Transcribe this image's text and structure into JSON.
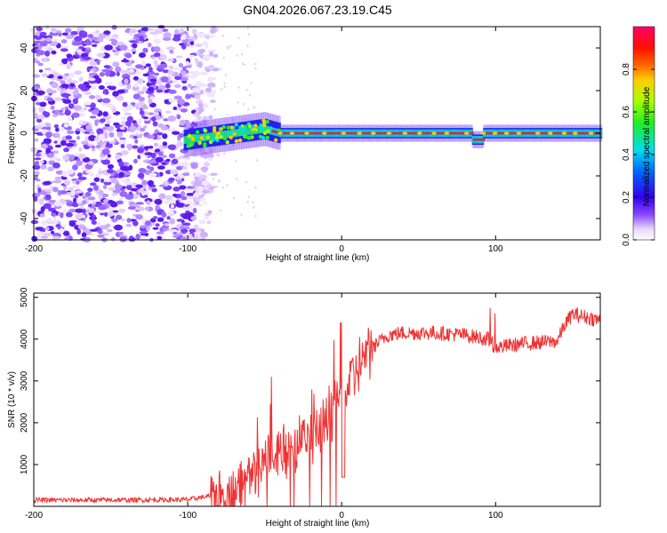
{
  "title": "GN04.2026.067.23.19.C45",
  "chart_data": [
    {
      "type": "heatmap",
      "xlabel": "Height of straight line (km)",
      "ylabel": "Frequency (Hz)",
      "xlim": [
        -200,
        168
      ],
      "ylim": [
        -50,
        50
      ],
      "xticks": [
        -200,
        -100,
        0,
        100
      ],
      "yticks": [
        -40,
        -20,
        0,
        20,
        40
      ],
      "colorbar": {
        "label": "Normalized spectral amplitude",
        "ticks": [
          "0.0",
          "0.2",
          "0.4",
          "0.6",
          "0.8"
        ],
        "range": [
          0,
          1
        ]
      },
      "description_points": [
        {
          "x": -200,
          "noise": "dense broadband low-amplitude noise"
        },
        {
          "x": -85,
          "noise": "broadband noise ends"
        },
        {
          "x": -100,
          "signal_start_freq": 0
        },
        {
          "x": -45,
          "freq": 2
        },
        {
          "x": 0,
          "freq": 0
        },
        {
          "x": 88,
          "freq": -3
        },
        {
          "x": 168,
          "freq": 1
        }
      ]
    },
    {
      "type": "line",
      "xlabel": "Height of straight line (km)",
      "ylabel": "SNR (10 * v/v)",
      "xlim": [
        -200,
        168
      ],
      "ylim": [
        0,
        5100
      ],
      "xticks": [
        -200,
        -100,
        0,
        100
      ],
      "yticks": [
        1000,
        2000,
        3000,
        4000,
        5000
      ],
      "series": [
        {
          "color": "#ee3333",
          "x": [
            -200,
            -150,
            -100,
            -85,
            -70,
            -60,
            -50,
            -40,
            -30,
            -20,
            -10,
            0,
            10,
            20,
            30,
            40,
            60,
            80,
            95,
            100,
            120,
            140,
            145,
            150,
            168
          ],
          "y": [
            150,
            150,
            160,
            250,
            400,
            700,
            1100,
            1400,
            1500,
            1700,
            2100,
            2600,
            3300,
            3800,
            4100,
            4150,
            4150,
            4100,
            4000,
            3800,
            3900,
            3950,
            4350,
            4600,
            4450
          ]
        }
      ]
    }
  ]
}
